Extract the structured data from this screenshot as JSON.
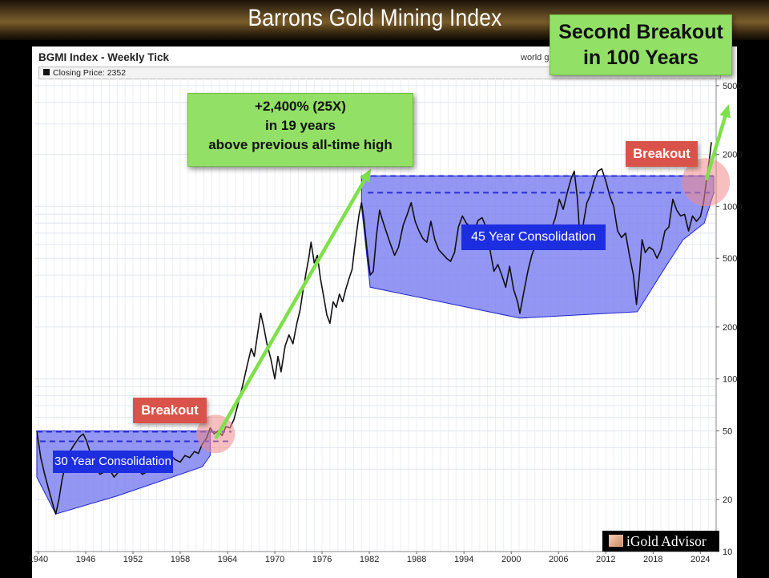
{
  "header": {
    "title": "Barrons Gold Mining Index"
  },
  "chart_header": {
    "title": "BGMI Index - Weekly Tick",
    "source": "world g",
    "legend": "Closing Price: 2352"
  },
  "annotations": {
    "gain_lines": [
      "+2,400% (25X)",
      "in 19 years",
      "above previous all-time high"
    ],
    "second_breakout_lines": [
      "Second Breakout",
      "in 100 Years"
    ],
    "breakout_early": "Breakout",
    "breakout_late": "Breakout",
    "consolidation_30": "30 Year Consolidation",
    "consolidation_45": "45 Year Consolidation"
  },
  "watermark": {
    "brand": "iGold Advisor"
  },
  "colors": {
    "price_line": "#111111",
    "consolidation_fill": "#7b7ff0",
    "consolidation_edge": "#1f25c9",
    "resistance_dash": "#2a2fd6",
    "arrow": "#7ee04a",
    "callout_green": "#93e066",
    "callout_red": "#d9534a",
    "label_blue": "#1d2ee0",
    "breakout_circle": "#f08a8a"
  },
  "chart_data": {
    "type": "line",
    "title": "BGMI Index - Weekly Tick",
    "x_ticks": [
      1940,
      1946,
      1952,
      1958,
      1964,
      1970,
      1976,
      1982,
      1988,
      1994,
      2000,
      2006,
      2012,
      2018,
      2024
    ],
    "y_ticks": [
      10,
      20,
      50,
      100,
      200,
      500,
      1000,
      2000,
      5000
    ],
    "y_scale": "log",
    "xlim": [
      1939.6,
      2026
    ],
    "ylim": [
      10,
      5500
    ],
    "grid": true,
    "last_close": 2352,
    "series": [
      {
        "name": "Closing Price",
        "points": [
          [
            1939.8,
            50
          ],
          [
            1940.3,
            35
          ],
          [
            1940.8,
            28
          ],
          [
            1941.3,
            23
          ],
          [
            1941.8,
            19
          ],
          [
            1942.2,
            16.5
          ],
          [
            1942.6,
            20
          ],
          [
            1943.0,
            26
          ],
          [
            1943.5,
            33
          ],
          [
            1944.0,
            38
          ],
          [
            1944.6,
            42
          ],
          [
            1945.2,
            46
          ],
          [
            1945.7,
            48
          ],
          [
            1946.1,
            44
          ],
          [
            1946.6,
            37
          ],
          [
            1947.2,
            31
          ],
          [
            1947.8,
            28
          ],
          [
            1948.4,
            29
          ],
          [
            1949.0,
            30
          ],
          [
            1949.6,
            27
          ],
          [
            1950.2,
            29
          ],
          [
            1950.8,
            31
          ],
          [
            1951.4,
            30
          ],
          [
            1952.0,
            32
          ],
          [
            1952.6,
            30
          ],
          [
            1953.2,
            28
          ],
          [
            1953.8,
            29
          ],
          [
            1954.4,
            31
          ],
          [
            1955.0,
            30
          ],
          [
            1955.6,
            32
          ],
          [
            1956.2,
            33
          ],
          [
            1956.8,
            36
          ],
          [
            1957.4,
            34
          ],
          [
            1958.0,
            33
          ],
          [
            1958.6,
            36
          ],
          [
            1959.2,
            35
          ],
          [
            1959.8,
            38
          ],
          [
            1960.3,
            37
          ],
          [
            1960.8,
            42
          ],
          [
            1961.3,
            45
          ],
          [
            1961.8,
            52
          ],
          [
            1962.3,
            48
          ],
          [
            1962.8,
            50
          ],
          [
            1963.3,
            47
          ],
          [
            1963.8,
            53
          ],
          [
            1964.3,
            52
          ],
          [
            1964.8,
            58
          ],
          [
            1965.2,
            68
          ],
          [
            1965.6,
            80
          ],
          [
            1966.0,
            95
          ],
          [
            1966.5,
            120
          ],
          [
            1967.0,
            150
          ],
          [
            1967.4,
            135
          ],
          [
            1967.8,
            180
          ],
          [
            1968.2,
            240
          ],
          [
            1968.6,
            200
          ],
          [
            1969.0,
            160
          ],
          [
            1969.5,
            130
          ],
          [
            1970.0,
            100
          ],
          [
            1970.4,
            135
          ],
          [
            1970.8,
            110
          ],
          [
            1971.3,
            155
          ],
          [
            1971.8,
            180
          ],
          [
            1972.3,
            160
          ],
          [
            1972.8,
            210
          ],
          [
            1973.2,
            250
          ],
          [
            1973.6,
            330
          ],
          [
            1974.0,
            420
          ],
          [
            1974.3,
            500
          ],
          [
            1974.6,
            620
          ],
          [
            1975.0,
            470
          ],
          [
            1975.4,
            520
          ],
          [
            1975.8,
            380
          ],
          [
            1976.2,
            300
          ],
          [
            1976.6,
            235
          ],
          [
            1977.0,
            210
          ],
          [
            1977.4,
            280
          ],
          [
            1977.8,
            260
          ],
          [
            1978.2,
            310
          ],
          [
            1978.6,
            280
          ],
          [
            1979.0,
            330
          ],
          [
            1979.4,
            380
          ],
          [
            1979.8,
            430
          ],
          [
            1980.1,
            560
          ],
          [
            1980.4,
            720
          ],
          [
            1980.7,
            900
          ],
          [
            1981.0,
            1050
          ],
          [
            1981.3,
            850
          ],
          [
            1981.7,
            560
          ],
          [
            1982.1,
            400
          ],
          [
            1982.5,
            420
          ],
          [
            1982.9,
            680
          ],
          [
            1983.3,
            950
          ],
          [
            1983.7,
            820
          ],
          [
            1984.2,
            700
          ],
          [
            1984.7,
            600
          ],
          [
            1985.2,
            520
          ],
          [
            1985.7,
            580
          ],
          [
            1986.3,
            780
          ],
          [
            1986.8,
            900
          ],
          [
            1987.3,
            1050
          ],
          [
            1987.8,
            820
          ],
          [
            1988.3,
            720
          ],
          [
            1988.8,
            650
          ],
          [
            1989.3,
            620
          ],
          [
            1989.8,
            820
          ],
          [
            1990.3,
            640
          ],
          [
            1990.8,
            560
          ],
          [
            1991.3,
            530
          ],
          [
            1991.8,
            500
          ],
          [
            1992.3,
            480
          ],
          [
            1992.8,
            540
          ],
          [
            1993.3,
            760
          ],
          [
            1993.8,
            880
          ],
          [
            1994.3,
            800
          ],
          [
            1994.8,
            760
          ],
          [
            1995.3,
            720
          ],
          [
            1995.8,
            830
          ],
          [
            1996.3,
            860
          ],
          [
            1996.8,
            760
          ],
          [
            1997.3,
            560
          ],
          [
            1997.8,
            420
          ],
          [
            1998.3,
            460
          ],
          [
            1998.8,
            400
          ],
          [
            1999.3,
            340
          ],
          [
            1999.8,
            450
          ],
          [
            2000.3,
            330
          ],
          [
            2000.8,
            280
          ],
          [
            2001.1,
            240
          ],
          [
            2001.6,
            320
          ],
          [
            2002.1,
            420
          ],
          [
            2002.6,
            520
          ],
          [
            2003.1,
            600
          ],
          [
            2003.6,
            720
          ],
          [
            2004.1,
            660
          ],
          [
            2004.6,
            780
          ],
          [
            2005.1,
            740
          ],
          [
            2005.6,
            860
          ],
          [
            2006.1,
            1100
          ],
          [
            2006.6,
            960
          ],
          [
            2007.1,
            1200
          ],
          [
            2007.6,
            1450
          ],
          [
            2008.0,
            1600
          ],
          [
            2008.4,
            1100
          ],
          [
            2008.8,
            560
          ],
          [
            2009.2,
            820
          ],
          [
            2009.6,
            1050
          ],
          [
            2010.0,
            1150
          ],
          [
            2010.5,
            1400
          ],
          [
            2011.0,
            1600
          ],
          [
            2011.5,
            1650
          ],
          [
            2012.0,
            1400
          ],
          [
            2012.5,
            1150
          ],
          [
            2013.0,
            1000
          ],
          [
            2013.5,
            720
          ],
          [
            2014.0,
            660
          ],
          [
            2014.5,
            700
          ],
          [
            2015.0,
            520
          ],
          [
            2015.5,
            400
          ],
          [
            2015.9,
            270
          ],
          [
            2016.3,
            420
          ],
          [
            2016.6,
            640
          ],
          [
            2017.0,
            540
          ],
          [
            2017.5,
            580
          ],
          [
            2018.0,
            560
          ],
          [
            2018.5,
            500
          ],
          [
            2019.0,
            560
          ],
          [
            2019.5,
            720
          ],
          [
            2020.0,
            760
          ],
          [
            2020.5,
            1100
          ],
          [
            2021.0,
            950
          ],
          [
            2021.5,
            880
          ],
          [
            2022.0,
            900
          ],
          [
            2022.5,
            720
          ],
          [
            2023.0,
            880
          ],
          [
            2023.5,
            820
          ],
          [
            2024.0,
            870
          ],
          [
            2024.4,
            1050
          ],
          [
            2024.8,
            1450
          ],
          [
            2025.1,
            1800
          ],
          [
            2025.4,
            2352
          ]
        ]
      }
    ]
  }
}
